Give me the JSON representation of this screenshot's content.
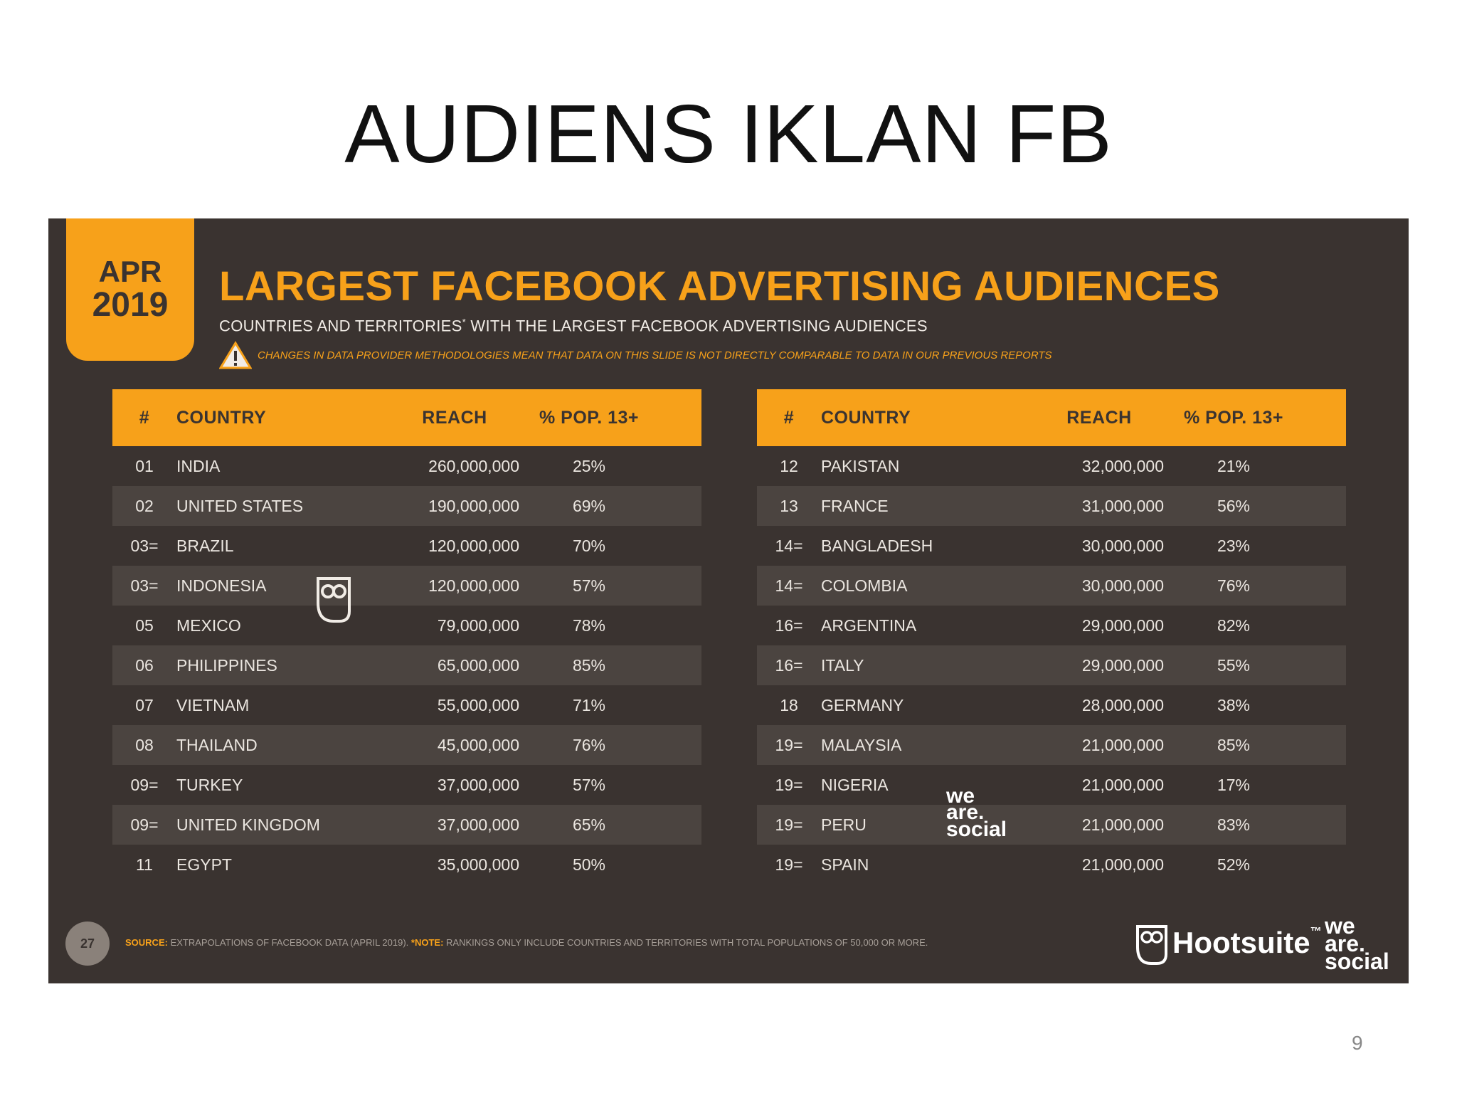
{
  "slide": {
    "title": "AUDIENS IKLAN FB",
    "page_number": "9"
  },
  "report": {
    "month": "APR",
    "year": "2019",
    "heading": "LARGEST FACEBOOK ADVERTISING AUDIENCES",
    "subheading": "COUNTRIES AND TERRITORIES",
    "subheading_mark": "*",
    "subheading_rest": " WITH THE LARGEST FACEBOOK ADVERTISING AUDIENCES",
    "warning": "CHANGES IN DATA PROVIDER METHODOLOGIES MEAN THAT DATA ON THIS SLIDE IS NOT DIRECTLY COMPARABLE TO DATA IN OUR PREVIOUS REPORTS",
    "warning_icon": "warning-triangle-icon",
    "slide_number": "27",
    "source_label": "SOURCE:",
    "source_text": " EXTRAPOLATIONS OF FACEBOOK DATA (APRIL 2019). ",
    "note_label": "*NOTE:",
    "note_text": " RANKINGS ONLY INCLUDE COUNTRIES AND TERRITORIES WITH TOTAL POPULATIONS OF 50,000 OR MORE."
  },
  "columns": {
    "rank": "#",
    "country": "COUNTRY",
    "reach": "REACH",
    "pct": "% POP. 13+"
  },
  "table_left": [
    {
      "rank": "01",
      "country": "INDIA",
      "reach": "260,000,000",
      "pct": "25%"
    },
    {
      "rank": "02",
      "country": "UNITED STATES",
      "reach": "190,000,000",
      "pct": "69%"
    },
    {
      "rank": "03=",
      "country": "BRAZIL",
      "reach": "120,000,000",
      "pct": "70%"
    },
    {
      "rank": "03=",
      "country": "INDONESIA",
      "reach": "120,000,000",
      "pct": "57%"
    },
    {
      "rank": "05",
      "country": "MEXICO",
      "reach": "79,000,000",
      "pct": "78%"
    },
    {
      "rank": "06",
      "country": "PHILIPPINES",
      "reach": "65,000,000",
      "pct": "85%"
    },
    {
      "rank": "07",
      "country": "VIETNAM",
      "reach": "55,000,000",
      "pct": "71%"
    },
    {
      "rank": "08",
      "country": "THAILAND",
      "reach": "45,000,000",
      "pct": "76%"
    },
    {
      "rank": "09=",
      "country": "TURKEY",
      "reach": "37,000,000",
      "pct": "57%"
    },
    {
      "rank": "09=",
      "country": "UNITED KINGDOM",
      "reach": "37,000,000",
      "pct": "65%"
    },
    {
      "rank": "11",
      "country": "EGYPT",
      "reach": "35,000,000",
      "pct": "50%"
    }
  ],
  "table_right": [
    {
      "rank": "12",
      "country": "PAKISTAN",
      "reach": "32,000,000",
      "pct": "21%"
    },
    {
      "rank": "13",
      "country": "FRANCE",
      "reach": "31,000,000",
      "pct": "56%"
    },
    {
      "rank": "14=",
      "country": "BANGLADESH",
      "reach": "30,000,000",
      "pct": "23%"
    },
    {
      "rank": "14=",
      "country": "COLOMBIA",
      "reach": "30,000,000",
      "pct": "76%"
    },
    {
      "rank": "16=",
      "country": "ARGENTINA",
      "reach": "29,000,000",
      "pct": "82%"
    },
    {
      "rank": "16=",
      "country": "ITALY",
      "reach": "29,000,000",
      "pct": "55%"
    },
    {
      "rank": "18",
      "country": "GERMANY",
      "reach": "28,000,000",
      "pct": "38%"
    },
    {
      "rank": "19=",
      "country": "MALAYSIA",
      "reach": "21,000,000",
      "pct": "85%"
    },
    {
      "rank": "19=",
      "country": "NIGERIA",
      "reach": "21,000,000",
      "pct": "17%"
    },
    {
      "rank": "19=",
      "country": "PERU",
      "reach": "21,000,000",
      "pct": "83%"
    },
    {
      "rank": "19=",
      "country": "SPAIN",
      "reach": "21,000,000",
      "pct": "52%"
    }
  ],
  "brands": {
    "hootsuite": "Hootsuite",
    "trademark": "™",
    "we_are_social": [
      "we",
      "are.",
      "social"
    ]
  },
  "colors": {
    "accent": "#f7a11a",
    "panel": "#3a3330",
    "row_alt": "#4b4440",
    "text": "#ebe6e0"
  }
}
